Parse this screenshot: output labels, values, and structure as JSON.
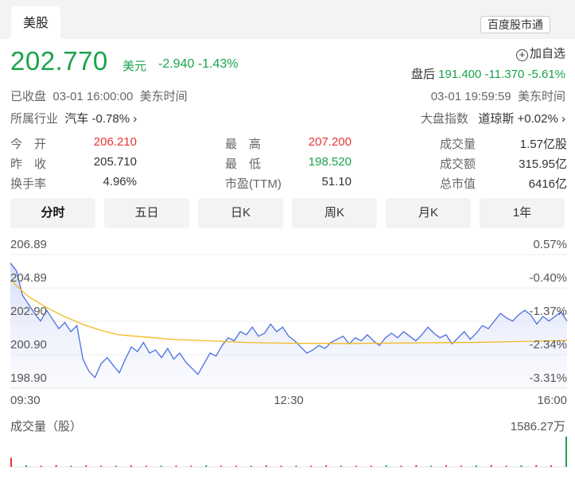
{
  "header": {
    "tab": "美股",
    "badge": "百度股市通"
  },
  "quote": {
    "price": "202.770",
    "currency": "美元",
    "change": "-2.940",
    "change_pct": "-1.43%",
    "watch": "加自选",
    "watch_icon": "plus-circle-icon",
    "after_label": "盘后",
    "after_price": "191.400",
    "after_change": "-11.370",
    "after_pct": "-5.61%",
    "status": "已收盘",
    "close_time": "03-01 16:00:00",
    "tz": "美东时间",
    "after_time": "03-01 19:59:59",
    "after_tz": "美东时间",
    "industry_label": "所属行业",
    "industry_name": "汽车",
    "industry_pct": "-0.78%",
    "index_label": "大盘指数",
    "index_name": "道琼斯",
    "index_pct": "+0.02%"
  },
  "stats": [
    {
      "label": "今　开",
      "value": "206.210",
      "color": "red"
    },
    {
      "label": "最　高",
      "value": "207.200",
      "color": "red"
    },
    {
      "label": "成交量",
      "value": "1.57亿股",
      "color": "dark"
    },
    {
      "label": "昨　收",
      "value": "205.710",
      "color": "dark"
    },
    {
      "label": "最　低",
      "value": "198.520",
      "color": "green"
    },
    {
      "label": "成交额",
      "value": "315.95亿",
      "color": "dark"
    },
    {
      "label": "换手率",
      "value": "4.96%",
      "color": "dark"
    },
    {
      "label": "市盈(TTM)",
      "value": "51.10",
      "color": "dark"
    },
    {
      "label": "总市值",
      "value": "6416亿",
      "color": "dark"
    }
  ],
  "tabs": [
    "分时",
    "五日",
    "日K",
    "周K",
    "月K",
    "1年"
  ],
  "chart_data": {
    "type": "line",
    "y_left_ticks": [
      "206.89",
      "204.89",
      "202.90",
      "200.90",
      "198.90"
    ],
    "y_right_ticks": [
      "0.57%",
      "-0.40%",
      "-1.37%",
      "-2.34%",
      "-3.31%"
    ],
    "x_ticks": [
      "09:30",
      "12:30",
      "16:00"
    ],
    "ylim": [
      197.9,
      207.39
    ],
    "series": [
      {
        "name": "price",
        "color": "#4a6ee0",
        "values": [
          206.1,
          205.6,
          204.0,
          203.4,
          202.8,
          202.3,
          203.0,
          202.4,
          201.8,
          202.2,
          201.6,
          202.0,
          199.8,
          199.0,
          198.6,
          199.5,
          199.9,
          199.4,
          198.9,
          199.8,
          200.6,
          200.3,
          200.9,
          200.2,
          200.4,
          199.9,
          200.5,
          199.8,
          200.2,
          199.6,
          199.2,
          198.8,
          199.5,
          200.2,
          200.0,
          200.7,
          201.2,
          201.0,
          201.6,
          201.4,
          201.9,
          201.3,
          201.5,
          202.1,
          201.6,
          201.9,
          201.3,
          201.0,
          200.6,
          200.2,
          200.4,
          200.7,
          200.5,
          200.9,
          201.1,
          201.3,
          200.8,
          201.2,
          201.0,
          201.4,
          201.0,
          200.7,
          201.2,
          201.5,
          201.2,
          201.6,
          201.3,
          201.0,
          201.4,
          201.9,
          201.5,
          201.2,
          201.4,
          200.8,
          201.2,
          201.6,
          201.1,
          201.5,
          202.0,
          201.8,
          202.3,
          202.8,
          202.5,
          202.3,
          202.7,
          203.0,
          202.7,
          202.1,
          202.6,
          202.3,
          202.6,
          202.9,
          202.3
        ]
      },
      {
        "name": "avg",
        "color": "#f2b81c",
        "values": [
          205.0,
          203.9,
          203.2,
          202.6,
          202.1,
          201.7,
          201.4,
          201.3,
          201.2,
          201.1,
          201.05,
          201.0,
          200.95,
          200.9,
          200.87,
          200.85,
          200.84,
          200.83,
          200.83,
          200.83,
          200.84,
          200.85,
          200.86,
          200.87,
          200.88,
          200.89,
          200.9,
          200.92,
          200.95,
          200.97,
          201.0,
          201.02
        ]
      }
    ]
  },
  "volume": {
    "label": "成交量（股）",
    "max": "1586.27万",
    "bars": [
      0.3,
      0.05,
      0.04,
      0.06,
      0.03,
      0.05,
      0.04,
      0.03,
      0.05,
      0.04,
      0.03,
      0.04,
      0.03,
      0.05,
      0.03,
      0.04,
      0.03,
      0.05,
      0.04,
      0.03,
      0.04,
      0.05,
      0.03,
      0.04,
      0.03,
      0.05,
      0.04,
      0.06,
      0.04,
      0.05,
      0.04,
      0.05,
      0.06,
      0.04,
      0.05,
      0.06,
      0.05,
      1.0
    ]
  }
}
